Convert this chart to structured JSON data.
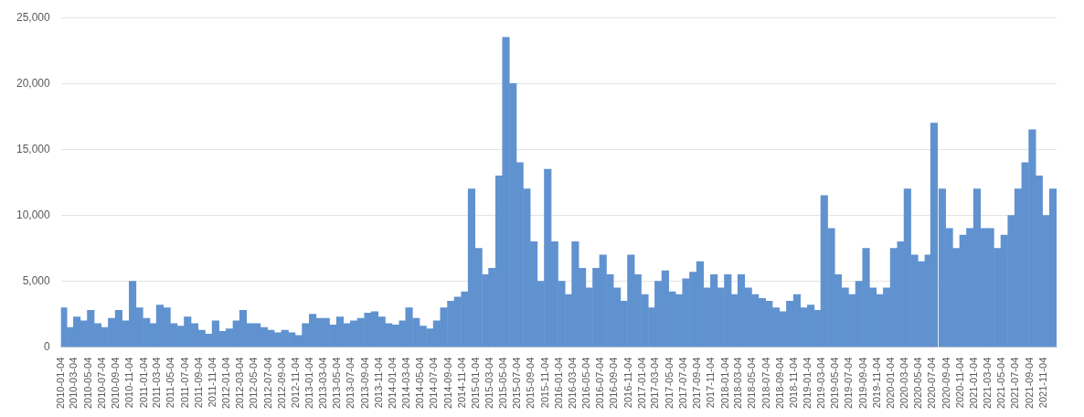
{
  "chart_data": {
    "type": "bar",
    "color": "#6092d0",
    "grid": "y",
    "legend": false,
    "xlim": [
      "2010-01-04",
      "2021-12-31"
    ],
    "ylim": [
      0,
      25000
    ],
    "yticks": [
      {
        "value": 0,
        "label": "0"
      },
      {
        "value": 5000,
        "label": "5,000"
      },
      {
        "value": 10000,
        "label": "10,000"
      },
      {
        "value": 15000,
        "label": "15,000"
      },
      {
        "value": 20000,
        "label": "20,000"
      },
      {
        "value": 25000,
        "label": "25,000"
      }
    ],
    "xticks": [
      "2010-01-04",
      "2010-03-04",
      "2010-05-04",
      "2010-07-04",
      "2010-09-04",
      "2010-11-04",
      "2011-01-04",
      "2011-03-04",
      "2011-05-04",
      "2011-07-04",
      "2011-09-04",
      "2011-11-04",
      "2012-01-04",
      "2012-03-04",
      "2012-05-04",
      "2012-07-04",
      "2012-09-04",
      "2012-11-04",
      "2013-01-04",
      "2013-03-04",
      "2013-05-04",
      "2013-07-04",
      "2013-09-04",
      "2013-11-04",
      "2014-01-04",
      "2014-03-04",
      "2014-05-04",
      "2014-07-04",
      "2014-09-04",
      "2014-11-04",
      "2015-01-04",
      "2015-03-04",
      "2015-05-04",
      "2015-07-04",
      "2015-09-04",
      "2015-11-04",
      "2016-01-04",
      "2016-03-04",
      "2016-05-04",
      "2016-07-04",
      "2016-09-04",
      "2016-11-04",
      "2017-01-04",
      "2017-03-04",
      "2017-05-04",
      "2017-07-04",
      "2017-09-04",
      "2017-11-04",
      "2018-01-04",
      "2018-03-04",
      "2018-05-04",
      "2018-07-04",
      "2018-09-04",
      "2018-11-04",
      "2019-01-04",
      "2019-03-04",
      "2019-05-04",
      "2019-07-04",
      "2019-09-04",
      "2019-11-04",
      "2020-01-04",
      "2020-03-04",
      "2020-05-04",
      "2020-07-04",
      "2020-09-04",
      "2020-11-04",
      "2021-01-04",
      "2021-03-04",
      "2021-05-04",
      "2021-07-04",
      "2021-09-04",
      "2021-11-04"
    ],
    "x": [
      "2010-01-15",
      "2010-02-15",
      "2010-03-15",
      "2010-04-15",
      "2010-05-15",
      "2010-06-15",
      "2010-07-15",
      "2010-08-15",
      "2010-09-15",
      "2010-10-15",
      "2010-11-15",
      "2010-12-15",
      "2011-01-15",
      "2011-02-15",
      "2011-03-15",
      "2011-04-15",
      "2011-05-15",
      "2011-06-15",
      "2011-07-15",
      "2011-08-15",
      "2011-09-15",
      "2011-10-15",
      "2011-11-15",
      "2011-12-15",
      "2012-01-15",
      "2012-02-15",
      "2012-03-15",
      "2012-04-15",
      "2012-05-15",
      "2012-06-15",
      "2012-07-15",
      "2012-08-15",
      "2012-09-15",
      "2012-10-15",
      "2012-11-15",
      "2012-12-15",
      "2013-01-15",
      "2013-02-15",
      "2013-03-15",
      "2013-04-15",
      "2013-05-15",
      "2013-06-15",
      "2013-07-15",
      "2013-08-15",
      "2013-09-15",
      "2013-10-15",
      "2013-11-15",
      "2013-12-15",
      "2014-01-15",
      "2014-02-15",
      "2014-03-15",
      "2014-04-15",
      "2014-05-15",
      "2014-06-15",
      "2014-07-15",
      "2014-08-15",
      "2014-09-15",
      "2014-10-15",
      "2014-11-15",
      "2014-12-15",
      "2015-01-15",
      "2015-02-15",
      "2015-03-15",
      "2015-04-15",
      "2015-05-15",
      "2015-06-15",
      "2015-07-15",
      "2015-08-15",
      "2015-09-15",
      "2015-10-15",
      "2015-11-15",
      "2015-12-15",
      "2016-01-15",
      "2016-02-15",
      "2016-03-15",
      "2016-04-15",
      "2016-05-15",
      "2016-06-15",
      "2016-07-15",
      "2016-08-15",
      "2016-09-15",
      "2016-10-15",
      "2016-11-15",
      "2016-12-15",
      "2017-01-15",
      "2017-02-15",
      "2017-03-15",
      "2017-04-15",
      "2017-05-15",
      "2017-06-15",
      "2017-07-15",
      "2017-08-15",
      "2017-09-15",
      "2017-10-15",
      "2017-11-15",
      "2017-12-15",
      "2018-01-15",
      "2018-02-15",
      "2018-03-15",
      "2018-04-15",
      "2018-05-15",
      "2018-06-15",
      "2018-07-15",
      "2018-08-15",
      "2018-09-15",
      "2018-10-15",
      "2018-11-15",
      "2018-12-15",
      "2019-01-15",
      "2019-02-15",
      "2019-03-15",
      "2019-04-15",
      "2019-05-15",
      "2019-06-15",
      "2019-07-15",
      "2019-08-15",
      "2019-09-15",
      "2019-10-15",
      "2019-11-15",
      "2019-12-15",
      "2020-01-15",
      "2020-02-15",
      "2020-03-15",
      "2020-04-15",
      "2020-05-15",
      "2020-06-15",
      "2020-07-10",
      "2020-08-15",
      "2020-09-15",
      "2020-10-15",
      "2020-11-15",
      "2020-12-15",
      "2021-01-15",
      "2021-02-15",
      "2021-03-15",
      "2021-04-15",
      "2021-05-15",
      "2021-06-15",
      "2021-07-15",
      "2021-08-15",
      "2021-09-15",
      "2021-10-15",
      "2021-11-15",
      "2021-12-15"
    ],
    "values": [
      3000,
      1500,
      2300,
      2000,
      2800,
      1800,
      1500,
      2200,
      2800,
      2000,
      5000,
      3000,
      2200,
      1800,
      3200,
      3000,
      1800,
      1600,
      2300,
      1800,
      1300,
      1000,
      2000,
      1200,
      1400,
      2000,
      2800,
      1800,
      1800,
      1500,
      1300,
      1100,
      1300,
      1100,
      900,
      1800,
      2500,
      2200,
      2200,
      1700,
      2300,
      1800,
      2000,
      2200,
      2600,
      2700,
      2300,
      1800,
      1700,
      2000,
      3000,
      2200,
      1600,
      1400,
      2000,
      3000,
      3500,
      3800,
      4200,
      12000,
      7500,
      5500,
      6000,
      13000,
      23500,
      20000,
      14000,
      12000,
      8000,
      5000,
      13500,
      8000,
      5000,
      4000,
      8000,
      6000,
      4500,
      6000,
      7000,
      5500,
      4500,
      3500,
      7000,
      5500,
      4000,
      3000,
      5000,
      5800,
      4200,
      4000,
      5200,
      5700,
      6500,
      4500,
      5500,
      4500,
      5500,
      4000,
      5500,
      4500,
      4000,
      3700,
      3500,
      3000,
      2700,
      3500,
      4000,
      3000,
      3200,
      2800,
      11500,
      9000,
      5500,
      4500,
      4000,
      5000,
      7500,
      4500,
      4000,
      4500,
      7500,
      8000,
      12000,
      7000,
      6500,
      7000,
      17000,
      12000,
      9000,
      7500,
      8500,
      9000,
      12000,
      9000,
      9000,
      7500,
      8500,
      10000,
      12000,
      14000,
      16500,
      13000,
      10000,
      12000
    ]
  }
}
